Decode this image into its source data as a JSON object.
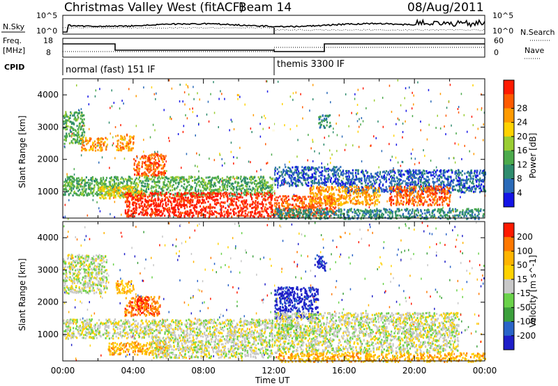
{
  "header": {
    "station": "Christmas Valley West (fitACF)",
    "beam": "Beam 14",
    "date": "08/Aug/2011"
  },
  "strip": {
    "nsky_label": "N.Sky",
    "nsky_ticks": [
      "10^5",
      "10^0"
    ],
    "nsearch_ticks": [
      "10^5",
      "10^0"
    ],
    "nsearch_label": "N.Search",
    "freq_label": "Freq.",
    "freq_unit": "[MHz]",
    "freq_ticks": [
      "18",
      "8"
    ],
    "nave_ticks": [
      "60",
      "0"
    ],
    "nave_label": "Nave",
    "cpid_label": "CPID",
    "modes": [
      {
        "name": "normal (fast) 151 IF",
        "start_h": 0,
        "end_h": 12
      },
      {
        "name": "themis 3300 IF",
        "start_h": 12,
        "end_h": 24
      }
    ]
  },
  "chart_data": [
    {
      "type": "heatmap",
      "title": "Power",
      "ylabel": "Slant Range [km]",
      "xlabel": "Time UT",
      "x_ticks": [
        "00:00",
        "04:00",
        "08:00",
        "12:00",
        "16:00",
        "20:00",
        "00:00"
      ],
      "y_ticks": [
        "1000",
        "2000",
        "3000",
        "4000"
      ],
      "ylim": [
        180,
        4500
      ],
      "xlim_hours": [
        0,
        24
      ],
      "colorbar": {
        "label": "Power [dB]",
        "ticks": [
          "4",
          "8",
          "12",
          "16",
          "20",
          "24",
          "28"
        ],
        "colors": [
          "#1414e6",
          "#2a6ab8",
          "#2f8c6e",
          "#4caa4c",
          "#9acd32",
          "#ffd200",
          "#ff9a00",
          "#ff5a00",
          "#ff1a00"
        ]
      },
      "regions": [
        {
          "t0": 0.0,
          "t1": 1.2,
          "r0": 2500,
          "r1": 3500,
          "v": 3
        },
        {
          "t0": 1.0,
          "t1": 2.5,
          "r0": 2300,
          "r1": 2700,
          "v": 6
        },
        {
          "t0": 3.0,
          "t1": 4.0,
          "r0": 2300,
          "r1": 2800,
          "v": 6
        },
        {
          "t0": 4.0,
          "t1": 5.8,
          "r0": 1500,
          "r1": 2200,
          "v": 7
        },
        {
          "t0": 0.0,
          "t1": 12.0,
          "r0": 900,
          "r1": 1500,
          "v": 3
        },
        {
          "t0": 2.0,
          "t1": 4.5,
          "r0": 800,
          "r1": 1200,
          "v": 5
        },
        {
          "t0": 3.5,
          "t1": 12.0,
          "r0": 250,
          "r1": 1000,
          "v": 8
        },
        {
          "t0": 12.0,
          "t1": 15.5,
          "r0": 250,
          "r1": 900,
          "v": 7
        },
        {
          "t0": 12.0,
          "t1": 16.0,
          "r0": 1200,
          "r1": 1800,
          "v": 1
        },
        {
          "t0": 16.0,
          "t1": 24.0,
          "r0": 1000,
          "r1": 1700,
          "v": 1
        },
        {
          "t0": 14.0,
          "t1": 18.0,
          "r0": 600,
          "r1": 1200,
          "v": 6
        },
        {
          "t0": 18.5,
          "t1": 22.0,
          "r0": 600,
          "r1": 1200,
          "v": 7
        },
        {
          "t0": 14.5,
          "t1": 15.2,
          "r0": 3000,
          "r1": 3400,
          "v": 2
        },
        {
          "t0": 12.0,
          "t1": 24.0,
          "r0": 180,
          "r1": 500,
          "v": 2
        }
      ]
    },
    {
      "type": "heatmap",
      "title": "Velocity",
      "ylabel": "Slant Range [km]",
      "xlabel": "Time UT",
      "x_ticks": [
        "00:00",
        "04:00",
        "08:00",
        "12:00",
        "16:00",
        "20:00",
        "00:00"
      ],
      "y_ticks": [
        "1000",
        "2000",
        "3000",
        "4000"
      ],
      "ylim": [
        180,
        4500
      ],
      "xlim_hours": [
        0,
        24
      ],
      "colorbar": {
        "label": "Velocity [m s^-1]",
        "ticks": [
          "200",
          "100",
          "50",
          "15",
          "-15",
          "-50",
          "-100",
          "-200"
        ],
        "colors": [
          "#1e1ec8",
          "#2a64c8",
          "#3ca03c",
          "#6ad24a",
          "#c8c8c8",
          "#ffd200",
          "#ffb400",
          "#ff7800",
          "#ff1a00"
        ]
      },
      "regions": [
        {
          "t0": 0.0,
          "t1": 2.5,
          "r0": 2300,
          "r1": 3500,
          "v": 4
        },
        {
          "t0": 3.0,
          "t1": 4.0,
          "r0": 2300,
          "r1": 2700,
          "v": 6
        },
        {
          "t0": 3.5,
          "t1": 5.5,
          "r0": 1600,
          "r1": 2200,
          "v": 7
        },
        {
          "t0": 4.2,
          "t1": 4.8,
          "r0": 1800,
          "r1": 2200,
          "v": 8
        },
        {
          "t0": 0.0,
          "t1": 12.0,
          "r0": 900,
          "r1": 1500,
          "v": 4
        },
        {
          "t0": 2.5,
          "t1": 6.0,
          "r0": 400,
          "r1": 800,
          "v": 6
        },
        {
          "t0": 5.0,
          "t1": 12.0,
          "r0": 300,
          "r1": 900,
          "v": 4
        },
        {
          "t0": 12.0,
          "t1": 14.5,
          "r0": 1500,
          "r1": 2500,
          "v": 0
        },
        {
          "t0": 12.2,
          "t1": 13.5,
          "r0": 900,
          "r1": 1400,
          "v": 3
        },
        {
          "t0": 14.3,
          "t1": 14.9,
          "r0": 3000,
          "r1": 3500,
          "v": 0
        },
        {
          "t0": 12.0,
          "t1": 22.5,
          "r0": 450,
          "r1": 1700,
          "v": 4
        },
        {
          "t0": 12.0,
          "t1": 24.0,
          "r0": 180,
          "r1": 450,
          "v": 6
        }
      ]
    }
  ]
}
